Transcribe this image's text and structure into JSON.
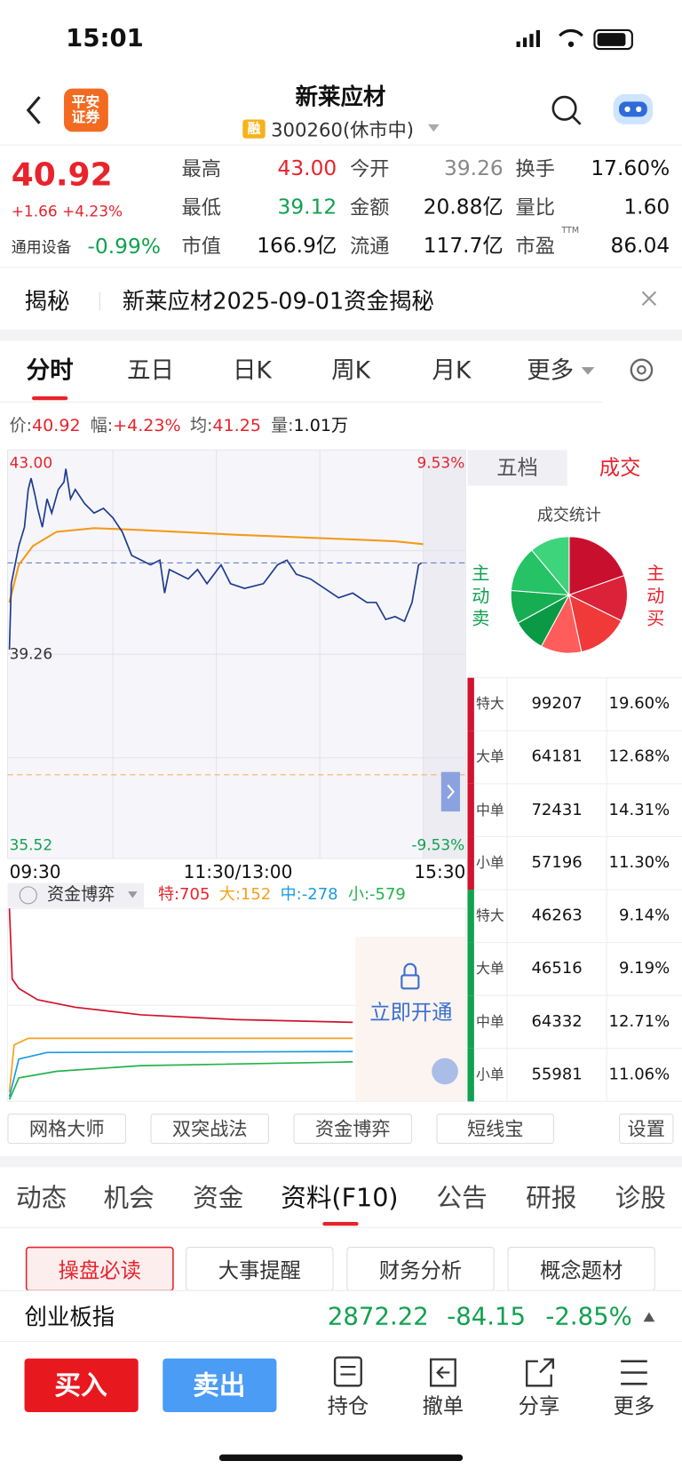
{
  "status": {
    "time": "15:01"
  },
  "header": {
    "logo": "平安证券",
    "title": "新莱应材",
    "tag": "融",
    "code": "300260(休市中)"
  },
  "quote": {
    "price": "40.92",
    "change": "+1.66 +4.23%",
    "sector": "通用设备",
    "sector_change": "-0.99%",
    "fields": [
      {
        "label": "最高",
        "value": "43.00"
      },
      {
        "label": "今开",
        "value": "39.26"
      },
      {
        "label": "换手",
        "value": "17.60%"
      },
      {
        "label": "最低",
        "value": "39.12"
      },
      {
        "label": "金额",
        "value": "20.88亿"
      },
      {
        "label": "量比",
        "value": "1.60"
      },
      {
        "label": "市值",
        "value": "166.9亿"
      },
      {
        "label": "流通",
        "value": "117.7亿"
      },
      {
        "label": "市盈",
        "value": "86.04",
        "sup": "TTM"
      }
    ]
  },
  "banner": {
    "label": "揭秘",
    "text": "新莱应材2025-09-01资金揭秘"
  },
  "tabs": [
    "分时",
    "五日",
    "日K",
    "周K",
    "月K",
    "更多"
  ],
  "info": [
    {
      "label": "价:",
      "value": "40.92"
    },
    {
      "label": "幅:",
      "value": "+4.23%"
    },
    {
      "label": "均:",
      "value": "41.25"
    },
    {
      "label": "量:",
      "value": "1.01万"
    }
  ],
  "chart": {
    "price_top": "43.00",
    "price_base": "39.26",
    "price_bottom": "35.52",
    "pct_top": "9.53%",
    "pct_bottom": "-9.53%",
    "x_labels": [
      "09:30",
      "11:30/13:00",
      "15:30"
    ]
  },
  "fund": {
    "title": "资金博弈",
    "items": [
      "特:705",
      "大:152",
      "中:-278",
      "小:-579"
    ],
    "unlock": "立即开通"
  },
  "side": {
    "tabs": [
      "五档",
      "成交"
    ],
    "pie_title": "成交统计",
    "sell_label": "主动卖",
    "buy_label": "主动买",
    "rows": [
      {
        "type": "特大",
        "volume": 99207,
        "percent": "19.60%"
      },
      {
        "type": "大单",
        "volume": 64181,
        "percent": "12.68%"
      },
      {
        "type": "中单",
        "volume": 72431,
        "percent": "14.31%"
      },
      {
        "type": "小单",
        "volume": 57196,
        "percent": "11.30%"
      },
      {
        "type": "特大",
        "volume": 46263,
        "percent": "9.14%"
      },
      {
        "type": "大单",
        "volume": 46516,
        "percent": "9.19%"
      },
      {
        "type": "中单",
        "volume": 64332,
        "percent": "12.71%"
      },
      {
        "type": "小单",
        "volume": 55981,
        "percent": "11.06%"
      }
    ]
  },
  "tools": [
    "网格大师",
    "双突战法",
    "资金博弈",
    "短线宝",
    "设置"
  ],
  "sections": [
    "动态",
    "机会",
    "资金",
    "资料(F10)",
    "公告",
    "研报",
    "诊股"
  ],
  "subtabs": [
    "操盘必读",
    "大事提醒",
    "财务分析",
    "概念题材"
  ],
  "index": {
    "name": "创业板指",
    "value": "2872.22",
    "change": "-84.15",
    "pct": "-2.85%"
  },
  "actions": {
    "buy": "买入",
    "sell": "卖出",
    "items": [
      "持仓",
      "撤单",
      "分享",
      "更多"
    ]
  }
}
